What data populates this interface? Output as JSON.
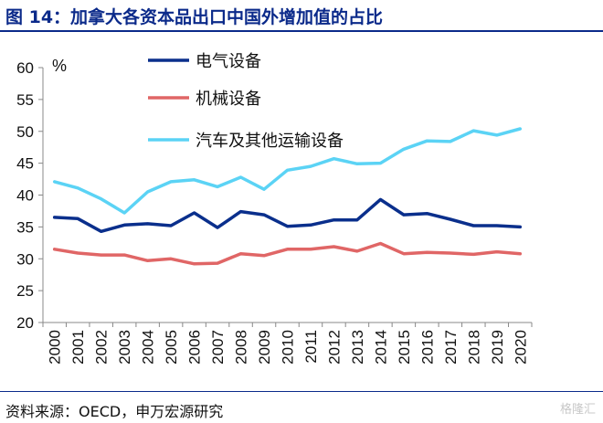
{
  "header": {
    "title": "图 14：加拿大各资本品出口中国外增加值的占比"
  },
  "footer": {
    "source": "资料来源：OECD，申万宏源研究",
    "watermark": "格隆汇"
  },
  "chart_data": {
    "type": "line",
    "title": "",
    "xlabel": "",
    "ylabel": "",
    "unit_label": "%",
    "x": [
      "2000",
      "2001",
      "2002",
      "2003",
      "2004",
      "2005",
      "2006",
      "2007",
      "2008",
      "2009",
      "2010",
      "2011",
      "2012",
      "2013",
      "2014",
      "2015",
      "2016",
      "2017",
      "2018",
      "2019",
      "2020"
    ],
    "ylim": [
      20,
      60
    ],
    "yticks": [
      20,
      25,
      30,
      35,
      40,
      45,
      50,
      55,
      60
    ],
    "grid": false,
    "legend_position": "top-left",
    "series": [
      {
        "name": "电气设备",
        "color": "#0a2f8c",
        "values": [
          36.5,
          36.3,
          34.3,
          35.3,
          35.5,
          35.2,
          37.2,
          34.9,
          37.4,
          36.9,
          35.1,
          35.3,
          36.1,
          36.1,
          39.3,
          36.9,
          37.1,
          36.2,
          35.2,
          35.2,
          35.0
        ]
      },
      {
        "name": "机械设备",
        "color": "#e06666",
        "values": [
          31.5,
          30.9,
          30.6,
          30.6,
          29.7,
          30.0,
          29.2,
          29.3,
          30.8,
          30.5,
          31.5,
          31.5,
          31.9,
          31.2,
          32.4,
          30.8,
          31.0,
          30.9,
          30.7,
          31.1,
          30.8
        ]
      },
      {
        "name": "汽车及其他运输设备",
        "color": "#5bd3f5",
        "values": [
          42.1,
          41.1,
          39.4,
          37.2,
          40.5,
          42.1,
          42.4,
          41.3,
          42.8,
          40.9,
          43.9,
          44.5,
          45.7,
          44.9,
          45.0,
          47.2,
          48.5,
          48.4,
          50.1,
          49.4,
          50.4
        ]
      }
    ]
  }
}
